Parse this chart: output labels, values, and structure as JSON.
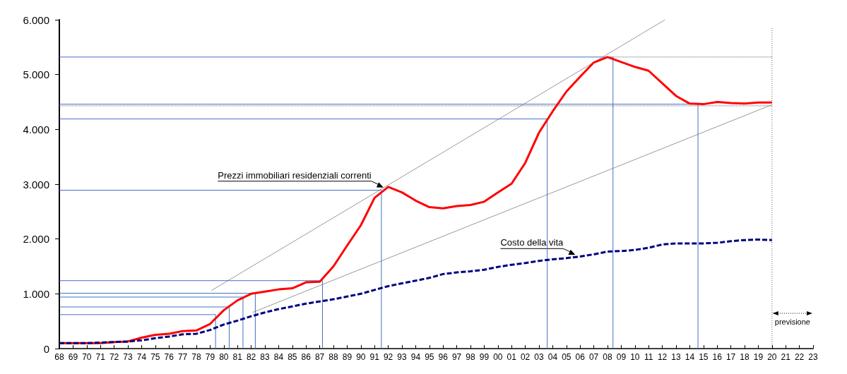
{
  "chart_data": {
    "type": "line",
    "x": [
      1968,
      1969,
      1970,
      1971,
      1972,
      1973,
      1974,
      1975,
      1976,
      1977,
      1978,
      1979,
      1980,
      1981,
      1982,
      1983,
      1984,
      1985,
      1986,
      1987,
      1988,
      1989,
      1990,
      1991,
      1992,
      1993,
      1994,
      1995,
      1996,
      1997,
      1998,
      1999,
      2000,
      2001,
      2002,
      2003,
      2004,
      2005,
      2006,
      2007,
      2008,
      2009,
      2010,
      2011,
      2012,
      2013,
      2014,
      2015,
      2016,
      2017,
      2018,
      2019,
      2020
    ],
    "series": [
      {
        "color": "#ff0000",
        "line_style": "solid",
        "values": [
          100,
          100,
          100,
          100,
          120,
          130,
          200,
          250,
          270,
          320,
          330,
          450,
          700,
          880,
          1000,
          1040,
          1080,
          1100,
          1210,
          1220,
          1500,
          1880,
          2250,
          2750,
          2950,
          2850,
          2700,
          2580,
          2560,
          2600,
          2620,
          2680,
          2850,
          3010,
          3390,
          3940,
          4330,
          4690,
          4960,
          5220,
          5320,
          5230,
          5140,
          5070,
          4840,
          4610,
          4470,
          4460,
          4500,
          4480,
          4470,
          4490,
          4490
        ]
      },
      {
        "color": "#000080",
        "line_style": "dashed",
        "values": [
          100,
          100,
          100,
          110,
          120,
          130,
          150,
          190,
          220,
          260,
          270,
          340,
          440,
          510,
          590,
          660,
          720,
          770,
          820,
          860,
          900,
          950,
          1000,
          1070,
          1140,
          1190,
          1240,
          1290,
          1360,
          1390,
          1410,
          1440,
          1490,
          1530,
          1560,
          1600,
          1630,
          1650,
          1680,
          1720,
          1770,
          1780,
          1800,
          1840,
          1900,
          1920,
          1920,
          1920,
          1930,
          1960,
          1980,
          1990,
          1980
        ]
      },
      {
        "color": "#999999",
        "line_style": "solid",
        "x": [
          1979.1,
          2012.2
        ],
        "values": [
          1060,
          6000
        ]
      },
      {
        "color": "#999999",
        "line_style": "solid",
        "x": [
          1982.1,
          2020
        ],
        "values": [
          660,
          4450
        ]
      },
      {
        "color": "#4472c4",
        "line_style": "solid",
        "x": [
          1968,
          1979.4,
          1979.4
        ],
        "values": [
          620,
          620,
          0
        ]
      },
      {
        "color": "#4472c4",
        "line_style": "solid",
        "x": [
          1968,
          1980.4,
          1980.4
        ],
        "values": [
          760,
          760,
          0
        ]
      },
      {
        "color": "#4472c4",
        "line_style": "solid",
        "x": [
          1968,
          1981.4,
          1981.4
        ],
        "values": [
          940,
          940,
          0
        ]
      },
      {
        "color": "#4472c4",
        "line_style": "solid",
        "x": [
          1968,
          1982.3,
          1982.3
        ],
        "values": [
          1010,
          1010,
          0
        ]
      },
      {
        "color": "#4472c4",
        "line_style": "solid",
        "x": [
          1968,
          1987.2,
          1987.2
        ],
        "values": [
          1240,
          1240,
          0
        ]
      },
      {
        "color": "#4472c4",
        "line_style": "solid",
        "x": [
          1968,
          1991.5,
          1991.5
        ],
        "values": [
          2890,
          2890,
          0
        ]
      },
      {
        "color": "#4472c4",
        "line_style": "solid",
        "x": [
          1968,
          2003.6,
          2003.6
        ],
        "values": [
          4190,
          4190,
          0
        ]
      },
      {
        "color": "#4472c4",
        "line_style": "solid",
        "x": [
          1968,
          2008.4,
          2008.4
        ],
        "values": [
          5320,
          5320,
          0
        ]
      },
      {
        "color": "#4472c4",
        "line_style": "solid",
        "x": [
          1968,
          2014.6,
          2014.6
        ],
        "values": [
          4460,
          4460,
          0
        ]
      },
      {
        "color": "#666666",
        "line_style": "dotted",
        "x": [
          2008.4,
          2020
        ],
        "values": [
          5320,
          5320
        ]
      },
      {
        "color": "#666666",
        "line_style": "dotted",
        "x": [
          1968,
          2020
        ],
        "values": [
          4430,
          4430
        ]
      }
    ],
    "ref_lines": [
      {
        "axis": "x",
        "value": 2020,
        "label": "previsione",
        "color": "#666666",
        "line_style": "dotted"
      }
    ],
    "annotations": [
      {
        "text": "Prezzi immobiliari residenziali correnti",
        "x": 1991.8,
        "y": 2900
      },
      {
        "text": "Costo della vita",
        "x": 2005.8,
        "y": 1670
      }
    ],
    "xlim": [
      1968,
      2023
    ],
    "xticks": [
      {
        "value": 1968,
        "label": "68"
      },
      {
        "value": 1969,
        "label": "69"
      },
      {
        "value": 1970,
        "label": "70"
      },
      {
        "value": 1971,
        "label": "71"
      },
      {
        "value": 1972,
        "label": "72"
      },
      {
        "value": 1973,
        "label": "73"
      },
      {
        "value": 1974,
        "label": "74"
      },
      {
        "value": 1975,
        "label": "75"
      },
      {
        "value": 1976,
        "label": "76"
      },
      {
        "value": 1977,
        "label": "77"
      },
      {
        "value": 1978,
        "label": "78"
      },
      {
        "value": 1979,
        "label": "79"
      },
      {
        "value": 1980,
        "label": "80"
      },
      {
        "value": 1981,
        "label": "81"
      },
      {
        "value": 1982,
        "label": "82"
      },
      {
        "value": 1983,
        "label": "83"
      },
      {
        "value": 1984,
        "label": "84"
      },
      {
        "value": 1985,
        "label": "85"
      },
      {
        "value": 1986,
        "label": "86"
      },
      {
        "value": 1987,
        "label": "87"
      },
      {
        "value": 1988,
        "label": "88"
      },
      {
        "value": 1989,
        "label": "89"
      },
      {
        "value": 1990,
        "label": "90"
      },
      {
        "value": 1991,
        "label": "91"
      },
      {
        "value": 1992,
        "label": "92"
      },
      {
        "value": 1993,
        "label": "93"
      },
      {
        "value": 1994,
        "label": "94"
      },
      {
        "value": 1995,
        "label": "95"
      },
      {
        "value": 1996,
        "label": "96"
      },
      {
        "value": 1997,
        "label": "97"
      },
      {
        "value": 1998,
        "label": "98"
      },
      {
        "value": 1999,
        "label": "99"
      },
      {
        "value": 2000,
        "label": "00"
      },
      {
        "value": 2001,
        "label": "01"
      },
      {
        "value": 2002,
        "label": "02"
      },
      {
        "value": 2003,
        "label": "03"
      },
      {
        "value": 2004,
        "label": "04"
      },
      {
        "value": 2005,
        "label": "05"
      },
      {
        "value": 2006,
        "label": "06"
      },
      {
        "value": 2007,
        "label": "07"
      },
      {
        "value": 2008,
        "label": "08"
      },
      {
        "value": 2009,
        "label": "09"
      },
      {
        "value": 2010,
        "label": "10"
      },
      {
        "value": 2011,
        "label": "11"
      },
      {
        "value": 2012,
        "label": "12"
      },
      {
        "value": 2013,
        "label": "13"
      },
      {
        "value": 2014,
        "label": "14"
      },
      {
        "value": 2015,
        "label": "15"
      },
      {
        "value": 2016,
        "label": "16"
      },
      {
        "value": 2017,
        "label": "17"
      },
      {
        "value": 2018,
        "label": "18"
      },
      {
        "value": 2019,
        "label": "19"
      },
      {
        "value": 2020,
        "label": "20"
      },
      {
        "value": 2021,
        "label": "21"
      },
      {
        "value": 2022,
        "label": "22"
      },
      {
        "value": 2023,
        "label": "23"
      }
    ],
    "ylim": [
      0,
      6000
    ],
    "yticks": [
      0,
      {
        "value": 1000,
        "label": "1.000"
      },
      {
        "value": 2000,
        "label": "2.000"
      },
      {
        "value": 3000,
        "label": "3.000"
      },
      {
        "value": 4000,
        "label": "4.000"
      },
      {
        "value": 5000,
        "label": "5.000"
      },
      {
        "value": 6000,
        "label": "6.000"
      }
    ],
    "grid": false,
    "marker": "none"
  }
}
